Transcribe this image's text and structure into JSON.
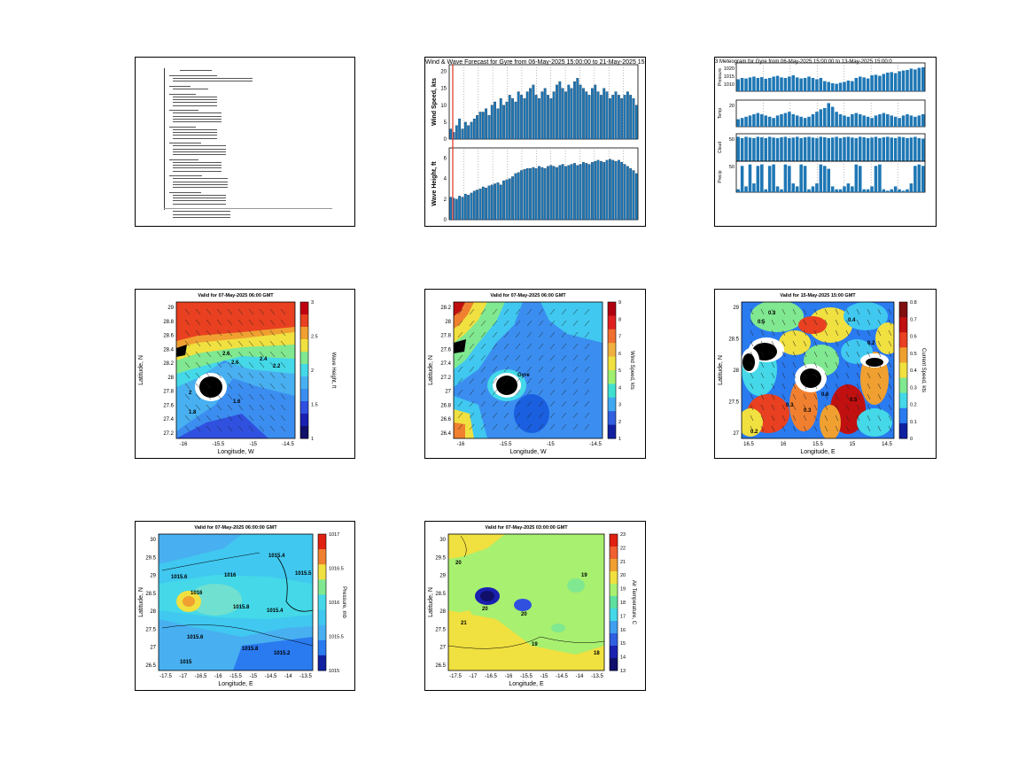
{
  "panels": [
    {
      "id": "text-report",
      "type": "document"
    },
    {
      "id": "wind-wave-bars",
      "type": "bar",
      "title": "Wind & Wave Forecast for Gyre from 06-May-2025 15:00:00 to 21-May-2025 15",
      "subplots": [
        {
          "ylabel": "Wind Speed, kts",
          "yticks": [
            "0",
            "5",
            "10",
            "15",
            "20"
          ],
          "ylim": [
            0,
            22
          ],
          "values": [
            3,
            2,
            4,
            6,
            3,
            5,
            4,
            5,
            6,
            7,
            8,
            8,
            9,
            7,
            10,
            11,
            9,
            12,
            10,
            11,
            13,
            12,
            11,
            14,
            13,
            12,
            14,
            15,
            16,
            13,
            12,
            14,
            15,
            13,
            12,
            14,
            16,
            17,
            15,
            14,
            16,
            15,
            17,
            18,
            16,
            15,
            14,
            13,
            15,
            16,
            14,
            13,
            15,
            14,
            12,
            13,
            14,
            13,
            12,
            13,
            14,
            13,
            12,
            10
          ]
        },
        {
          "ylabel": "Wave Height, ft",
          "yticks": [
            "0",
            "2",
            "4",
            "6"
          ],
          "ylim": [
            0,
            7
          ],
          "values": [
            2.2,
            2.1,
            2.0,
            2.3,
            2.2,
            2.5,
            2.4,
            2.6,
            2.8,
            2.9,
            3.0,
            3.2,
            3.1,
            3.3,
            3.4,
            3.5,
            3.6,
            3.4,
            3.8,
            3.9,
            4.0,
            4.2,
            4.5,
            4.6,
            4.8,
            4.9,
            5.0,
            5.0,
            5.1,
            5.0,
            5.2,
            5.1,
            5.0,
            5.2,
            5.3,
            5.2,
            5.1,
            5.3,
            5.4,
            5.2,
            5.3,
            5.4,
            5.5,
            5.3,
            5.4,
            5.6,
            5.5,
            5.4,
            5.6,
            5.7,
            5.8,
            5.7,
            5.6,
            5.8,
            5.9,
            5.8,
            5.7,
            5.8,
            5.6,
            5.4,
            5.2,
            5.0,
            4.8,
            4.5
          ]
        }
      ]
    },
    {
      "id": "met-bars",
      "type": "bar",
      "title": "3 Meteogram for Gyre from 06-May-2025 15:00:00 to 13-May-2025 15:00:0",
      "subplots": [
        {
          "ylabel": "Pressure",
          "yticks": [
            "1020",
            "1015",
            "1010"
          ],
          "values": [
            0.45,
            0.5,
            0.48,
            0.52,
            0.55,
            0.5,
            0.53,
            0.47,
            0.5,
            0.55,
            0.58,
            0.52,
            0.5,
            0.55,
            0.6,
            0.52,
            0.48,
            0.5,
            0.55,
            0.5,
            0.45,
            0.5,
            0.38,
            0.35,
            0.3,
            0.28,
            0.32,
            0.35,
            0.4,
            0.38,
            0.5,
            0.55,
            0.52,
            0.48,
            0.6,
            0.62,
            0.58,
            0.65,
            0.7,
            0.72,
            0.68,
            0.75,
            0.78,
            0.8,
            0.85,
            0.82,
            0.88,
            0.9
          ]
        },
        {
          "ylabel": "Temp",
          "yticks": [
            "20"
          ],
          "values": [
            0.3,
            0.35,
            0.4,
            0.45,
            0.5,
            0.55,
            0.5,
            0.45,
            0.4,
            0.35,
            0.45,
            0.5,
            0.55,
            0.6,
            0.5,
            0.45,
            0.4,
            0.35,
            0.4,
            0.5,
            0.6,
            0.7,
            0.75,
            0.95,
            0.8,
            0.6,
            0.5,
            0.45,
            0.4,
            0.5,
            0.55,
            0.5,
            0.45,
            0.4,
            0.35,
            0.45,
            0.5,
            0.55,
            0.5,
            0.45,
            0.4,
            0.35,
            0.45,
            0.5,
            0.45,
            0.4,
            0.45,
            0.5
          ]
        },
        {
          "ylabel": "Cloud",
          "yticks": [
            "50"
          ],
          "values": [
            0.95,
            0.9,
            0.95,
            0.92,
            0.9,
            0.95,
            0.93,
            0.9,
            0.95,
            0.92,
            0.9,
            0.93,
            0.95,
            0.9,
            0.92,
            0.95,
            0.9,
            0.93,
            0.95,
            0.92,
            0.9,
            0.95,
            0.93,
            0.9,
            0.92,
            0.95,
            0.9,
            0.93,
            0.95,
            0.92,
            0.9,
            0.95,
            0.93,
            0.9,
            0.92,
            0.95,
            0.9,
            0.93,
            0.95,
            0.92,
            0.9,
            0.95,
            0.93,
            0.9,
            0.92,
            0.95,
            0.9,
            0.88
          ]
        },
        {
          "ylabel": "Precip",
          "yticks": [
            "50"
          ],
          "values": [
            0.1,
            0.9,
            0.2,
            0.95,
            0.3,
            0.9,
            0.95,
            0.1,
            0.9,
            0.95,
            0.2,
            0.1,
            0.95,
            0.9,
            0.3,
            0.2,
            0.95,
            0.9,
            0.1,
            0.2,
            0.3,
            0.95,
            0.9,
            0.8,
            0.2,
            0.1,
            0.1,
            0.2,
            0.3,
            0.2,
            0.95,
            0.9,
            0.1,
            0.1,
            0.2,
            0.9,
            0.95,
            0.1,
            0.05,
            0.1,
            0.2,
            0.1,
            0.05,
            0.1,
            0.3,
            0.9,
            0.95,
            0.9
          ]
        }
      ]
    },
    {
      "id": "wave-map",
      "type": "heatmap",
      "title": "Valid for 07-May-2025 06:00 GMT",
      "xlabel": "Longitude, W",
      "ylabel": "Latitude, N",
      "xticks": [
        "-16",
        "-15.5",
        "-15",
        "-14.5"
      ],
      "yticks": [
        "29",
        "28.8",
        "28.6",
        "28.4",
        "28.2",
        "28",
        "27.8",
        "27.6",
        "27.4",
        "27.2"
      ],
      "cbar_label": "Wave Height, ft",
      "cbar_ticks": [
        "3",
        "2.5",
        "2",
        "1.5",
        "1"
      ],
      "contour_labels": [
        "2.6",
        "2.6",
        "2.4",
        "2.2",
        "2",
        "1.8",
        "1.6"
      ]
    },
    {
      "id": "wind-map",
      "type": "heatmap",
      "title": "Valid for 07-May-2025 06:00 GMT",
      "xlabel": "Longitude, W",
      "ylabel": "Latitude, N",
      "xticks": [
        "-16",
        "-15.5",
        "-15",
        "-14.5"
      ],
      "yticks": [
        "28.2",
        "28",
        "27.8",
        "27.6",
        "27.4",
        "27.2",
        "27",
        "26.8",
        "26.6",
        "26.4"
      ],
      "cbar_label": "Wind Speed, kts",
      "cbar_ticks": [
        "9",
        "8",
        "7",
        "6",
        "5",
        "4",
        "3",
        "2",
        "1"
      ],
      "contour_labels": [
        "Gyre"
      ]
    },
    {
      "id": "current-map",
      "type": "heatmap",
      "title": "Valid for 15-May-2025 15:00 GMT",
      "xlabel": "Longitude, E",
      "ylabel": "Latitude, N",
      "xticks": [
        "16.5",
        "16",
        "15.5",
        "15",
        "14.5"
      ],
      "yticks": [
        "29",
        "28.5",
        "28",
        "27.5",
        "27"
      ],
      "cbar_label": "Current Speed, kts",
      "cbar_ticks": [
        "0.8",
        "0.7",
        "0.6",
        "0.5",
        "0.4",
        "0.3",
        "0.2",
        "0.1",
        "0"
      ],
      "contour_labels": [
        "0.3",
        "0.5",
        "0.4",
        "0.2",
        "0.3",
        "0.3",
        "0.5",
        "0.6",
        "0.2"
      ]
    },
    {
      "id": "pressure-map",
      "type": "heatmap",
      "title": "Valid for 07-May-2025 06:00:00 GMT",
      "xlabel": "Longitude, E",
      "ylabel": "Latitude, N",
      "xticks": [
        "-17.5",
        "-17",
        "-16.5",
        "-16",
        "-15.5",
        "-15",
        "-14.5",
        "-14",
        "-13.5"
      ],
      "yticks": [
        "30",
        "29.5",
        "29",
        "28.5",
        "28",
        "27.5",
        "27",
        "26.5"
      ],
      "cbar_label": "Pressure, mb",
      "cbar_ticks": [
        "1017",
        "1016.5",
        "1016",
        "1015.5",
        "1015"
      ],
      "contour_labels": [
        "1015.6",
        "1016",
        "1015.4",
        "1016",
        "1015.8",
        "1015.6",
        "1015.4",
        "1015.5",
        "1015.8",
        "1015.2",
        "1015"
      ]
    },
    {
      "id": "temp-map",
      "type": "heatmap",
      "title": "Valid for 07-May-2025 03:00:00 GMT",
      "xlabel": "Longitude, E",
      "ylabel": "Latitude, N",
      "xticks": [
        "-17.5",
        "-17",
        "-16.5",
        "-16",
        "-15.5",
        "-15",
        "-14.5",
        "-14",
        "-13.5"
      ],
      "yticks": [
        "30",
        "29.5",
        "29",
        "28.5",
        "28",
        "27.5",
        "27",
        "26.5"
      ],
      "cbar_label": "Air Temperature, C",
      "cbar_ticks": [
        "23",
        "22",
        "21",
        "20",
        "19",
        "18",
        "17",
        "16",
        "15",
        "14",
        "13"
      ],
      "contour_labels": [
        "20",
        "21",
        "19",
        "20",
        "20",
        "19",
        "18"
      ]
    }
  ]
}
